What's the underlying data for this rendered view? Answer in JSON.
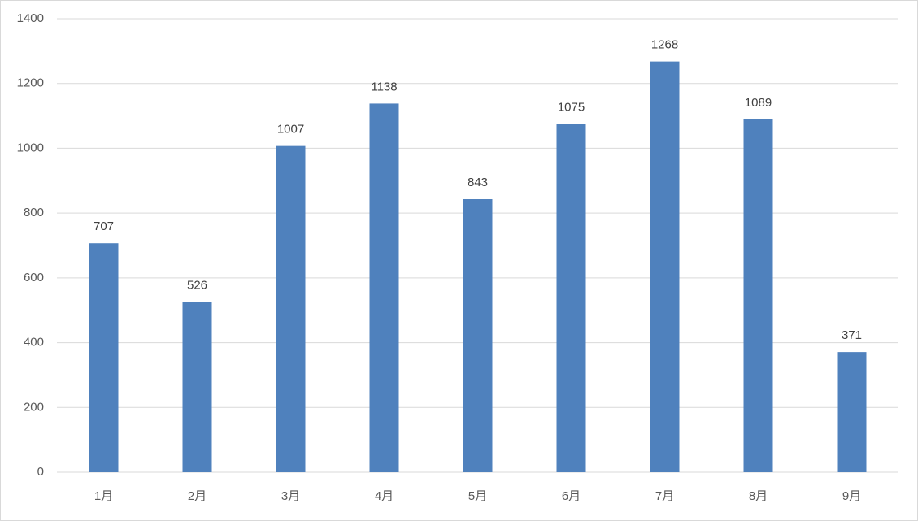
{
  "chart_data": {
    "type": "bar",
    "categories": [
      "1月",
      "2月",
      "3月",
      "4月",
      "5月",
      "6月",
      "7月",
      "8月",
      "9月"
    ],
    "values": [
      707,
      526,
      1007,
      1138,
      843,
      1075,
      1268,
      1089,
      371
    ],
    "color": "#4f81bd",
    "ylim": [
      0,
      1400
    ],
    "yticks": [
      0,
      200,
      400,
      600,
      800,
      1000,
      1200,
      1400
    ],
    "grid": true
  }
}
